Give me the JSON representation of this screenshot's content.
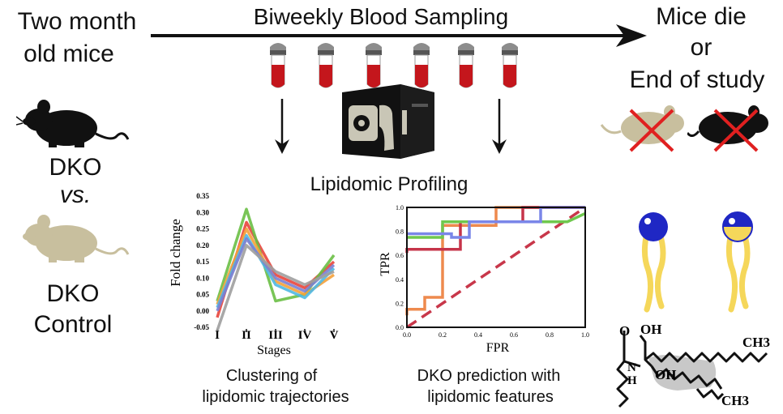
{
  "left": {
    "start_line1": "Two month",
    "start_line2": "old mice",
    "dko": "DKO",
    "vs": "vs.",
    "control_line1": "DKO",
    "control_line2": "Control"
  },
  "timeline": {
    "title": "Biweekly Blood Sampling",
    "tube_count": 6
  },
  "right": {
    "end_line1": "Mice die",
    "end_line2": "or",
    "end_line3": "End of study",
    "ch3_top": "CH3",
    "ch3_bottom": "CH3",
    "atom_o": "O",
    "atom_oh1": "OH",
    "atom_oh2": "OH",
    "atom_n": "N",
    "atom_h": "H"
  },
  "center": {
    "profiling_label": "Lipidomic Profiling",
    "cluster_caption_line1": "Clustering of",
    "cluster_caption_line2": "lipidomic trajectories",
    "dko_caption_line1": "DKO prediction with",
    "dko_caption_line2": "lipidomic features"
  },
  "colors": {
    "blood": "#c4161c",
    "tube_cap": "#8c8c8c",
    "mouse_dko": "#111111",
    "mouse_control": "#c8bf9e",
    "cross": "#e02020",
    "lipid_tail": "#f5d75a",
    "lipid_head": "#1f27c4",
    "lipid_head_half": "#f5d75a"
  },
  "chart_data": [
    {
      "type": "line",
      "title": "",
      "xlabel": "Stages",
      "ylabel": "Fold change",
      "categories": [
        "I",
        "II",
        "III",
        "IV",
        "V"
      ],
      "ylim": [
        -0.05,
        0.35
      ],
      "yticks": [
        "0.35",
        "0.30",
        "0.25",
        "0.20",
        "0.15",
        "0.10",
        "0.05",
        "0.00",
        "-0.05"
      ],
      "series": [
        {
          "color": "#e8453c",
          "values": [
            -0.02,
            0.27,
            0.11,
            0.07,
            0.15
          ]
        },
        {
          "color": "#6abf45",
          "values": [
            0.03,
            0.31,
            0.03,
            0.05,
            0.17
          ]
        },
        {
          "color": "#f5a13a",
          "values": [
            0.02,
            0.25,
            0.09,
            0.05,
            0.11
          ]
        },
        {
          "color": "#4fb8e3",
          "values": [
            0.01,
            0.23,
            0.08,
            0.04,
            0.13
          ]
        },
        {
          "color": "#7b7fd1",
          "values": [
            0.0,
            0.22,
            0.1,
            0.06,
            0.14
          ]
        },
        {
          "color": "#9e9e9e",
          "values": [
            -0.06,
            0.2,
            0.12,
            0.08,
            0.12
          ]
        }
      ]
    },
    {
      "type": "line",
      "title": "",
      "xlabel": "FPR",
      "ylabel": "TPR",
      "xlim": [
        0,
        1
      ],
      "ylim": [
        0,
        1
      ],
      "xticks": [
        "0.0",
        "0.2",
        "0.4",
        "0.6",
        "0.8",
        "1.0"
      ],
      "yticks": [
        "0.0",
        "0.2",
        "0.4",
        "0.6",
        "0.8",
        "1.0"
      ],
      "diagonal_color": "#c8374a",
      "series": [
        {
          "color": "#ee8a4e",
          "x": [
            0,
            0,
            0.1,
            0.1,
            0.2,
            0.2,
            0.5,
            0.5,
            1.0
          ],
          "y": [
            0.1,
            0.15,
            0.15,
            0.25,
            0.25,
            0.85,
            0.85,
            1.0,
            1.0
          ]
        },
        {
          "color": "#c6344a",
          "x": [
            0,
            0,
            0.3,
            0.3,
            0.65,
            0.65,
            1.0
          ],
          "y": [
            0.62,
            0.65,
            0.65,
            0.88,
            0.88,
            1.0,
            1.0
          ]
        },
        {
          "color": "#6fc84e",
          "x": [
            0,
            0.2,
            0.2,
            0.9,
            1.0
          ],
          "y": [
            0.75,
            0.75,
            0.88,
            0.88,
            0.95
          ]
        },
        {
          "color": "#7a86e8",
          "x": [
            0,
            0.25,
            0.25,
            0.35,
            0.35,
            0.75,
            0.75,
            1.0
          ],
          "y": [
            0.78,
            0.78,
            0.75,
            0.75,
            0.88,
            0.88,
            1.0,
            1.0
          ]
        }
      ]
    }
  ]
}
